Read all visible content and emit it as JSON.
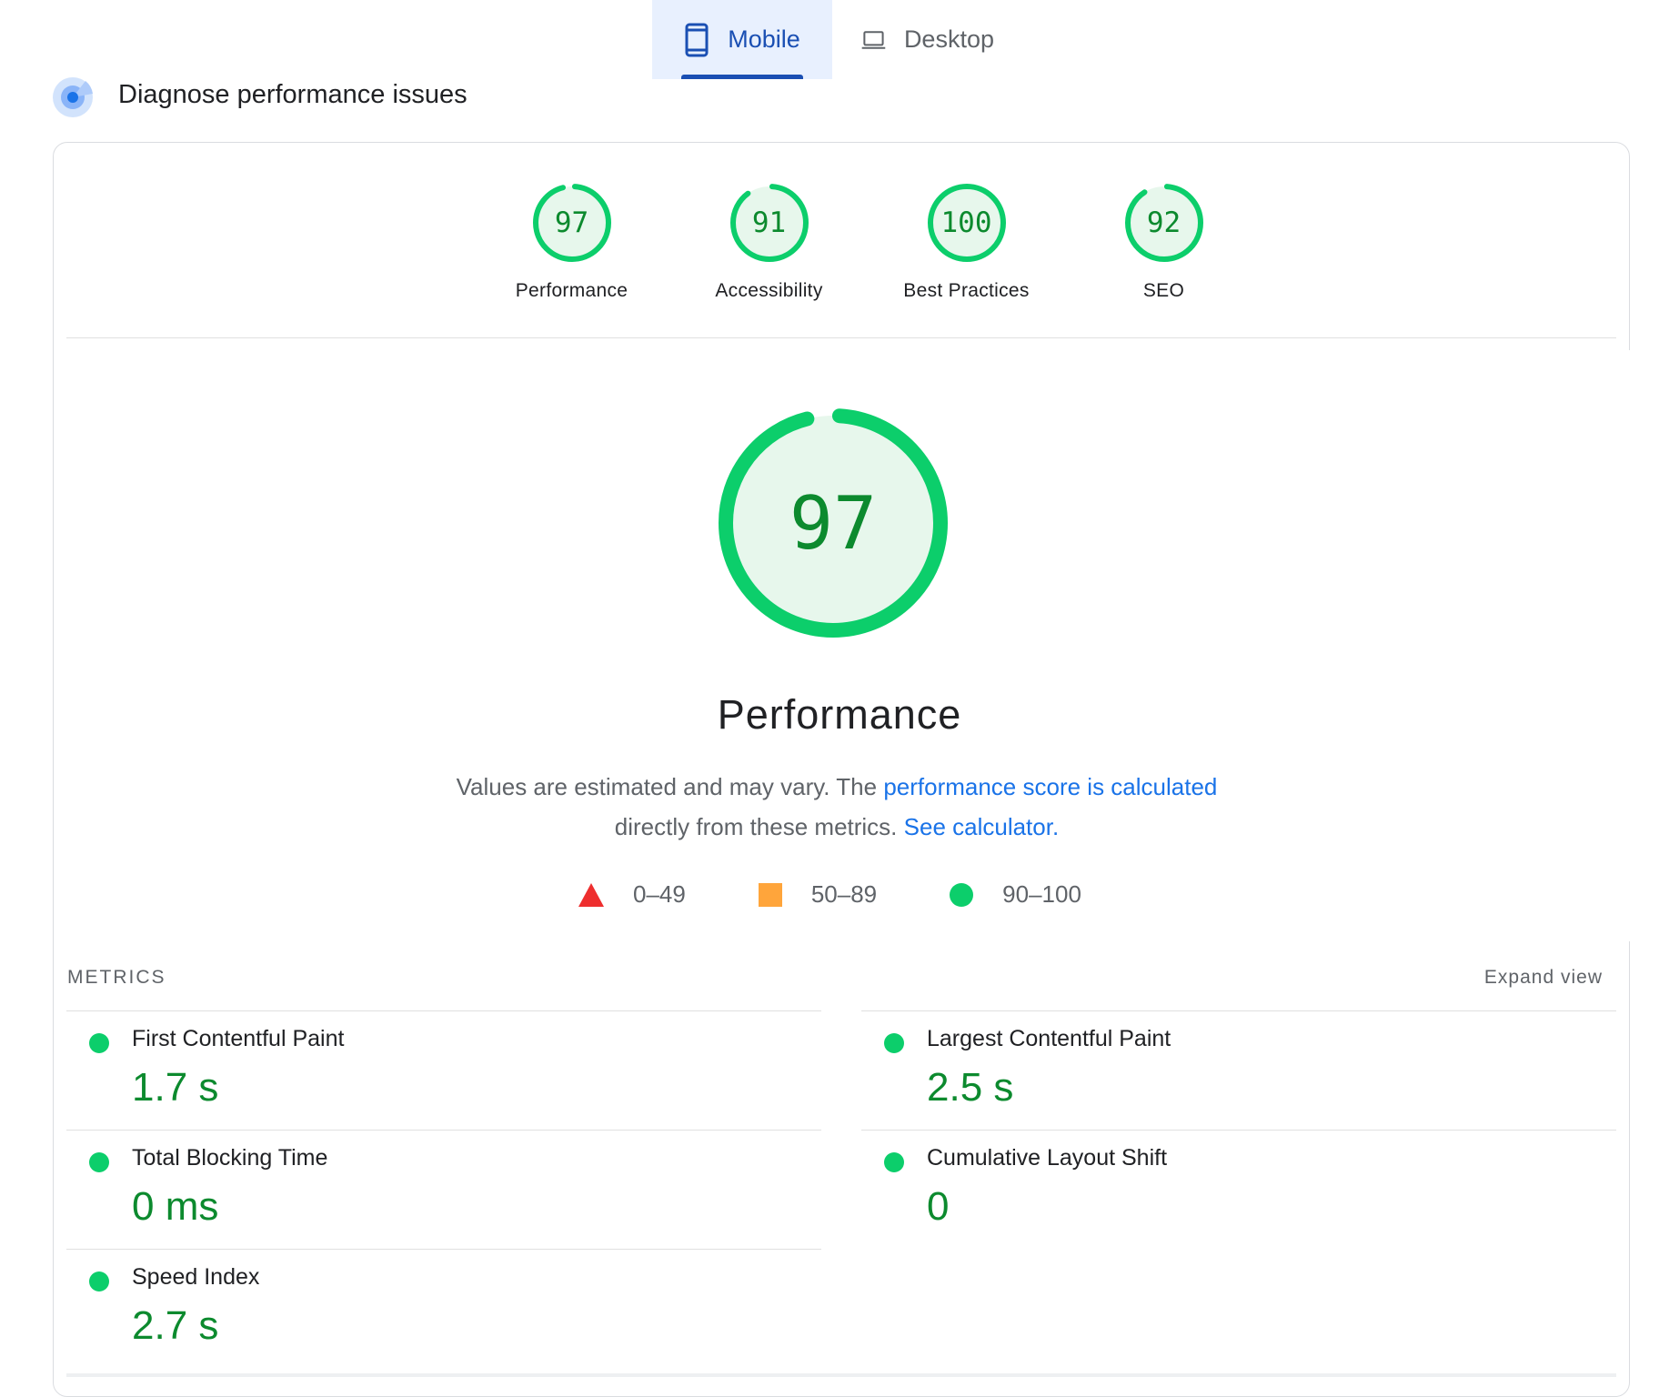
{
  "tabs": [
    {
      "label": "Mobile",
      "icon": "mobile-phone-icon",
      "selected": true
    },
    {
      "label": "Desktop",
      "icon": "laptop-icon",
      "selected": false
    }
  ],
  "section": {
    "title": "Diagnose performance issues",
    "icon": "radar-target-icon"
  },
  "categories": [
    {
      "label": "Performance",
      "score": 97
    },
    {
      "label": "Accessibility",
      "score": 91
    },
    {
      "label": "Best Practices",
      "score": 100
    },
    {
      "label": "SEO",
      "score": 92
    }
  ],
  "main": {
    "score": 97,
    "title": "Performance",
    "desc_text_1": "Values are estimated and may vary. The ",
    "desc_link_1": "performance score is calculated",
    "desc_text_2": " directly from these metrics. ",
    "desc_link_2": "See calculator."
  },
  "legend": [
    {
      "range": "0–49",
      "shape": "triangle",
      "color": "#ee2e2e"
    },
    {
      "range": "50–89",
      "shape": "square",
      "color": "#ffa53b"
    },
    {
      "range": "90–100",
      "shape": "circle",
      "color": "#0cce6b"
    }
  ],
  "metrics": {
    "header": "METRICS",
    "expand_label": "Expand view",
    "items": [
      {
        "name": "First Contentful Paint",
        "value": "1.7 s"
      },
      {
        "name": "Largest Contentful Paint",
        "value": "2.5 s"
      },
      {
        "name": "Total Blocking Time",
        "value": "0 ms"
      },
      {
        "name": "Cumulative Layout Shift",
        "value": "0"
      },
      {
        "name": "Speed Index",
        "value": "2.7 s"
      }
    ]
  },
  "colors": {
    "pass_ring": "#0cce6b",
    "pass_text": "#0c8a2e",
    "pass_fill": "#e7f7ec",
    "link": "#1a73e8",
    "tab_active": "#1a4fb3"
  }
}
